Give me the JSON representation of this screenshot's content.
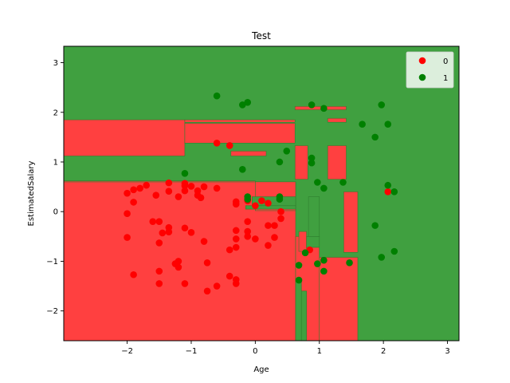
{
  "chart_data": {
    "type": "scatter",
    "title": "Test",
    "xlabel": "Age",
    "ylabel": "EstimatedSalary",
    "xlim": [
      -2.99,
      3.18
    ],
    "ylim": [
      -2.6,
      3.33
    ],
    "xticks": [
      -2,
      -1,
      0,
      1,
      2,
      3
    ],
    "yticks": [
      -2,
      -1,
      0,
      1,
      2,
      3
    ],
    "grid": false,
    "legend_position": "top-right",
    "background_class": 1,
    "colors": {
      "0": "#ff0000",
      "1": "#008000",
      "region_0": "#ff4040",
      "region_1": "#40a040"
    },
    "regions_class_0": [
      [
        -2.99,
        -2.6,
        0.63,
        0.6
      ],
      [
        0.63,
        -2.6,
        1.0,
        -0.5
      ],
      [
        1.0,
        -2.6,
        1.6,
        -0.92
      ],
      [
        -2.99,
        0.6,
        0.0,
        0.62
      ],
      [
        -2.99,
        1.12,
        -1.1,
        1.85
      ],
      [
        -1.1,
        1.38,
        0.62,
        1.78
      ],
      [
        -1.1,
        1.8,
        0.62,
        1.85
      ],
      [
        0.62,
        2.05,
        1.42,
        2.12
      ],
      [
        0.62,
        0.65,
        0.82,
        1.33
      ],
      [
        1.13,
        0.65,
        1.42,
        1.33
      ],
      [
        1.13,
        1.8,
        1.42,
        1.88
      ],
      [
        1.38,
        -0.72,
        2.16,
        -0.82
      ],
      [
        1.38,
        -0.82,
        1.6,
        0.4
      ],
      [
        0.68,
        -0.8,
        0.8,
        -0.4
      ],
      [
        -0.38,
        1.12,
        0.17,
        1.22
      ],
      [
        0.0,
        0.02,
        0.63,
        0.6
      ]
    ],
    "regions_class_1": [
      [
        0.63,
        -2.6,
        0.72,
        -1.4
      ],
      [
        0.72,
        -2.6,
        0.8,
        -1.6
      ],
      [
        0.8,
        -0.72,
        1.0,
        -0.5
      ],
      [
        -0.15,
        0.05,
        0.63,
        0.12
      ],
      [
        -0.05,
        0.12,
        0.63,
        0.3
      ],
      [
        0.83,
        -0.5,
        1.0,
        0.3
      ]
    ],
    "series": [
      {
        "name": "0",
        "points": [
          [
            -2.0,
            0.37
          ],
          [
            -1.9,
            0.44
          ],
          [
            -1.8,
            0.47
          ],
          [
            -1.7,
            0.53
          ],
          [
            -1.55,
            0.33
          ],
          [
            -1.35,
            0.58
          ],
          [
            -1.35,
            0.41
          ],
          [
            -1.2,
            0.3
          ],
          [
            -1.1,
            0.52
          ],
          [
            -1.1,
            0.57
          ],
          [
            -1.1,
            0.42
          ],
          [
            -1.0,
            0.51
          ],
          [
            -0.9,
            0.33
          ],
          [
            -0.9,
            0.42
          ],
          [
            -0.8,
            0.5
          ],
          [
            -0.85,
            0.28
          ],
          [
            -0.6,
            0.47
          ],
          [
            -2.0,
            -0.04
          ],
          [
            -1.9,
            0.19
          ],
          [
            -1.6,
            -0.2
          ],
          [
            -1.5,
            -0.2
          ],
          [
            -1.45,
            -0.43
          ],
          [
            -1.35,
            -0.32
          ],
          [
            -1.35,
            -0.41
          ],
          [
            -1.1,
            -0.33
          ],
          [
            -1.0,
            -0.42
          ],
          [
            -0.8,
            -0.6
          ],
          [
            -1.5,
            -0.63
          ],
          [
            -1.25,
            -1.05
          ],
          [
            -1.2,
            -1.0
          ],
          [
            -1.2,
            -1.12
          ],
          [
            -1.5,
            -1.2
          ],
          [
            -1.5,
            -1.45
          ],
          [
            -1.1,
            -1.45
          ],
          [
            -0.75,
            -1.03
          ],
          [
            -0.75,
            -1.6
          ],
          [
            -0.6,
            -1.5
          ],
          [
            -0.4,
            -1.3
          ],
          [
            -0.3,
            -1.37
          ],
          [
            -0.3,
            -1.45
          ],
          [
            -0.4,
            -0.77
          ],
          [
            -0.3,
            -0.72
          ],
          [
            -0.3,
            -0.55
          ],
          [
            -0.3,
            -0.38
          ],
          [
            -0.12,
            -0.2
          ],
          [
            -0.12,
            -0.4
          ],
          [
            -0.12,
            -0.5
          ],
          [
            0.0,
            -0.55
          ],
          [
            0.2,
            -0.68
          ],
          [
            0.2,
            -0.28
          ],
          [
            0.3,
            -0.28
          ],
          [
            0.3,
            -0.52
          ],
          [
            0.4,
            -0.14
          ],
          [
            0.4,
            0.0
          ],
          [
            0.1,
            0.22
          ],
          [
            0.2,
            0.17
          ],
          [
            0.0,
            0.12
          ],
          [
            -0.12,
            0.22
          ],
          [
            -0.3,
            0.15
          ],
          [
            -0.3,
            0.2
          ],
          [
            -0.6,
            1.38
          ],
          [
            -0.4,
            1.33
          ],
          [
            0.85,
            -0.77
          ],
          [
            2.07,
            0.4
          ],
          [
            -2.0,
            -0.52
          ],
          [
            -1.9,
            -1.27
          ]
        ]
      },
      {
        "name": "1",
        "points": [
          [
            -0.6,
            2.33
          ],
          [
            -0.2,
            2.15
          ],
          [
            -0.12,
            2.2
          ],
          [
            0.88,
            2.15
          ],
          [
            1.07,
            2.08
          ],
          [
            1.97,
            2.15
          ],
          [
            1.67,
            1.76
          ],
          [
            1.87,
            1.5
          ],
          [
            2.07,
            1.76
          ],
          [
            0.49,
            1.22
          ],
          [
            0.38,
            1.0
          ],
          [
            -0.2,
            0.85
          ],
          [
            -1.1,
            0.77
          ],
          [
            0.88,
            1.08
          ],
          [
            0.88,
            0.98
          ],
          [
            0.97,
            0.59
          ],
          [
            1.07,
            0.47
          ],
          [
            1.37,
            0.59
          ],
          [
            2.07,
            0.53
          ],
          [
            2.17,
            0.4
          ],
          [
            -0.12,
            0.3
          ],
          [
            -0.12,
            0.25
          ],
          [
            0.38,
            0.3
          ],
          [
            0.38,
            0.25
          ],
          [
            1.87,
            -0.28
          ],
          [
            1.97,
            -0.92
          ],
          [
            2.17,
            -0.8
          ],
          [
            1.47,
            -1.03
          ],
          [
            1.07,
            -0.98
          ],
          [
            0.97,
            -1.05
          ],
          [
            1.07,
            -1.2
          ],
          [
            0.78,
            -0.83
          ],
          [
            0.68,
            -1.08
          ],
          [
            0.68,
            -1.38
          ]
        ]
      }
    ]
  }
}
